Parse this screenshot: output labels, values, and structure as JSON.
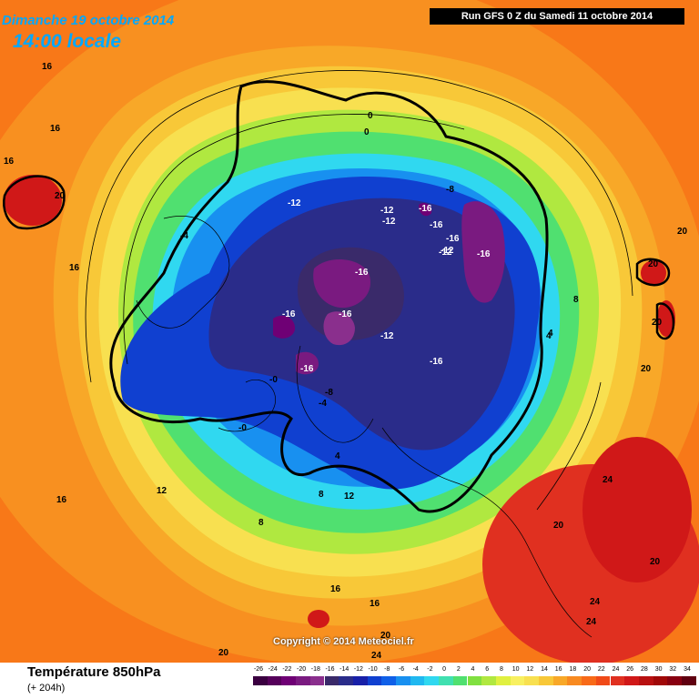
{
  "header": {
    "date": "Dimanche 19 octobre 2014",
    "time": "14:00",
    "time_suffix": "locale",
    "run": "Run GFS 0 Z du Samedi 11 octobre 2014"
  },
  "footer": {
    "title": "Température 850hPa",
    "subtitle": "(+ 204h)",
    "copyright": "Copyright © 2014 Meteociel.fr"
  },
  "scale": {
    "labels": [
      "-26",
      "-24",
      "-22",
      "-20",
      "-18",
      "-16",
      "-14",
      "-12",
      "-10",
      "-8",
      "-6",
      "-4",
      "-2",
      "0",
      "2",
      "4",
      "6",
      "8",
      "10",
      "12",
      "14",
      "16",
      "18",
      "20",
      "22",
      "24",
      "26",
      "28",
      "30",
      "32",
      "34"
    ],
    "colors": [
      "#3a0040",
      "#55005a",
      "#6f0075",
      "#7a1a80",
      "#8a2f8d",
      "#3a2a6a",
      "#2a2c8a",
      "#1820a8",
      "#1040d0",
      "#1060e8",
      "#1890f0",
      "#20b8f0",
      "#30d8f0",
      "#40e0b0",
      "#50e070",
      "#80e040",
      "#b0e840",
      "#e0f040",
      "#f8f060",
      "#f8e050",
      "#f8c838",
      "#f8a828",
      "#f88a20",
      "#f86a18",
      "#f04a18",
      "#e03020",
      "#d01818",
      "#b81010",
      "#a00808",
      "#880010",
      "#600010"
    ]
  },
  "isotherm_labels": [
    {
      "text": "16"
    },
    {
      "text": "16"
    },
    {
      "text": "16"
    },
    {
      "text": "20"
    },
    {
      "text": "-4"
    },
    {
      "text": "16"
    },
    {
      "text": "-12"
    },
    {
      "text": "-12"
    },
    {
      "text": "-12"
    },
    {
      "text": "-16"
    },
    {
      "text": "-16"
    },
    {
      "text": "-8"
    },
    {
      "text": "-16"
    },
    {
      "text": "-12"
    },
    {
      "text": "-16"
    },
    {
      "text": "-16"
    },
    {
      "text": "-16"
    },
    {
      "text": "-16"
    },
    {
      "text": "-12"
    },
    {
      "text": "-16"
    },
    {
      "text": "-16"
    },
    {
      "text": "-8"
    },
    {
      "text": "-4"
    },
    {
      "text": "-0"
    },
    {
      "text": "4"
    },
    {
      "text": "4"
    },
    {
      "text": "8"
    },
    {
      "text": "12"
    },
    {
      "text": "8"
    },
    {
      "text": "16"
    },
    {
      "text": "12"
    },
    {
      "text": "16"
    },
    {
      "text": "16"
    },
    {
      "text": "20"
    },
    {
      "text": "20"
    },
    {
      "text": "24"
    },
    {
      "text": "20"
    },
    {
      "text": "20"
    },
    {
      "text": "20"
    },
    {
      "text": "20"
    },
    {
      "text": "20"
    },
    {
      "text": "24"
    },
    {
      "text": "24"
    },
    {
      "text": "20"
    },
    {
      "text": "24"
    },
    {
      "text": "0"
    },
    {
      "text": "0"
    },
    {
      "text": "4"
    },
    {
      "text": "8"
    },
    {
      "text": "-0"
    },
    {
      "text": "-12"
    }
  ]
}
